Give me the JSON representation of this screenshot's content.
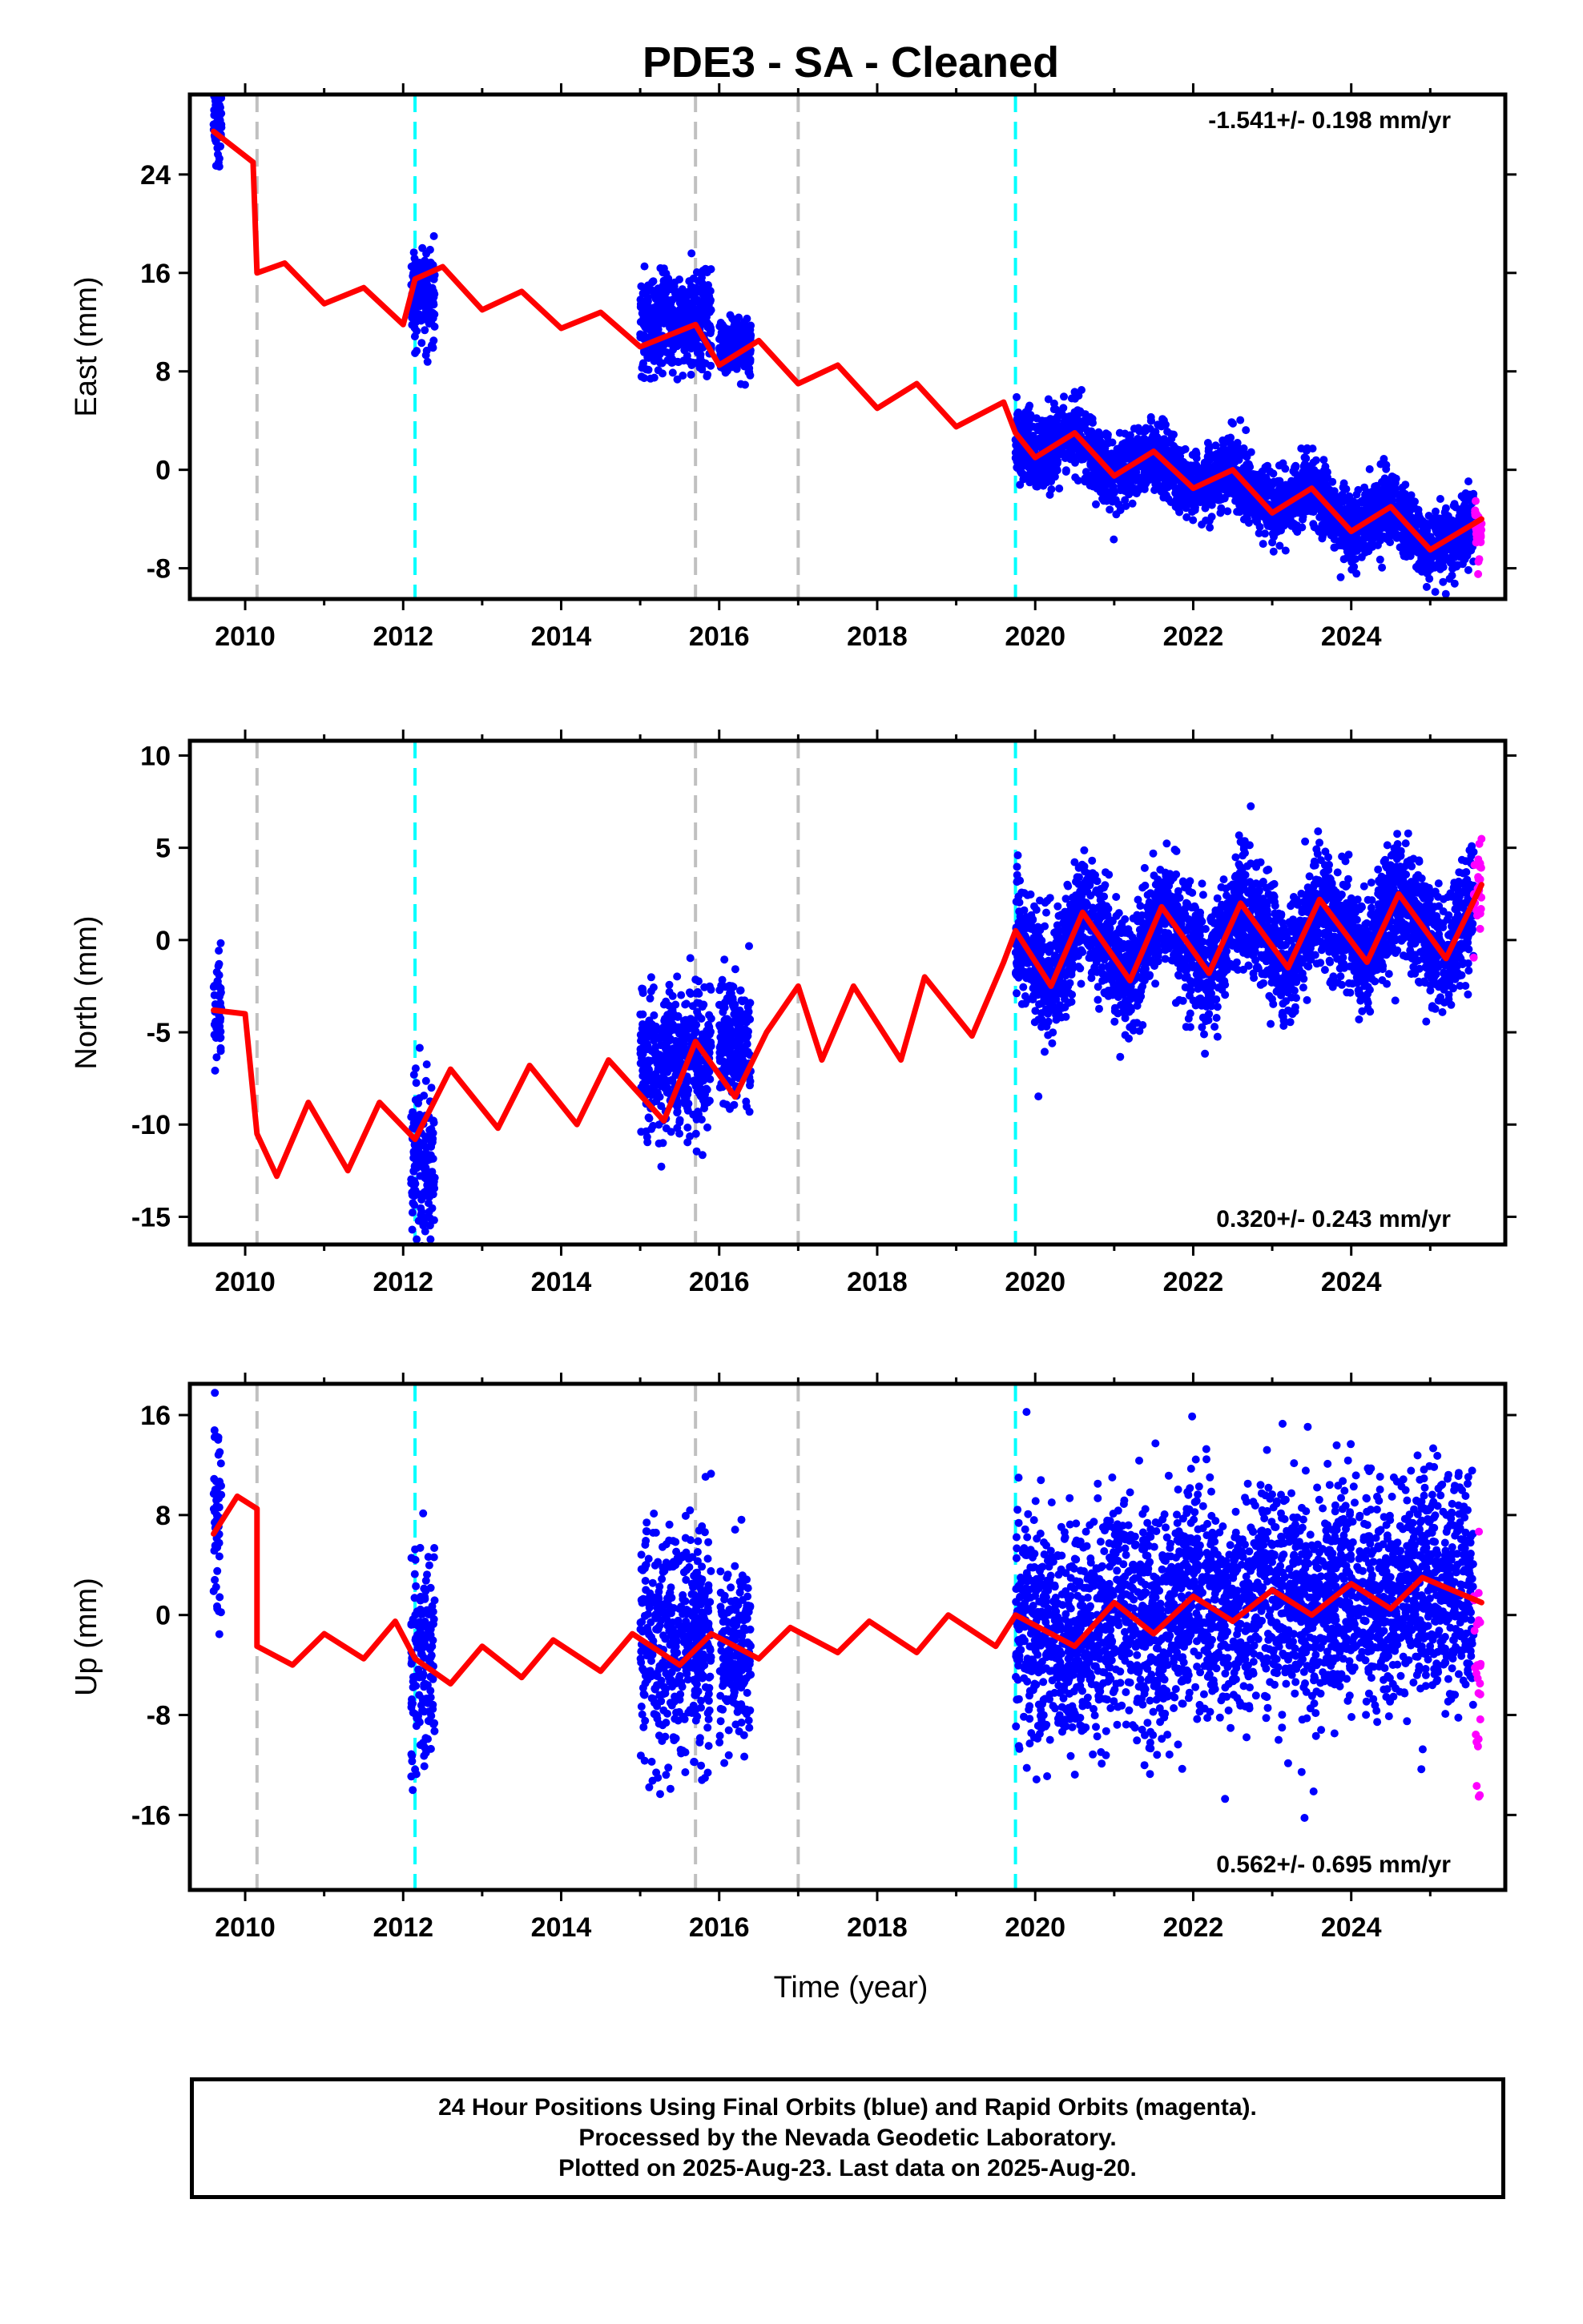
{
  "title": "PDE3  - SA - Cleaned",
  "x_label": "Time (year)",
  "footer": {
    "line1": "24 Hour Positions Using Final Orbits (blue) and Rapid Orbits (magenta).",
    "line2": "Processed by the Nevada Geodetic Laboratory.",
    "line3": "Plotted on 2025-Aug-23. Last data on 2025-Aug-20."
  },
  "colors": {
    "final_orbits": "#0000ff",
    "rapid_orbits": "#ff00ff",
    "model": "#ff0000",
    "offset_equipment": "#00ffff",
    "offset_other": "#c0c0c0"
  },
  "chart_data": [
    {
      "type": "scatter",
      "panel": "east",
      "ylabel": "East (mm)",
      "rate": "-1.541+/- 0.198 mm/yr",
      "rate_position": "top-right",
      "xlim": [
        2009.3,
        2025.95
      ],
      "ylim": [
        -10.5,
        30.5
      ],
      "xticks": [
        2010,
        2012,
        2014,
        2016,
        2018,
        2020,
        2022,
        2024
      ],
      "yticks": [
        -8,
        0,
        8,
        16,
        24
      ],
      "offsets_gray": [
        2010.15,
        2015.7,
        2017.0
      ],
      "offsets_cyan": [
        2012.15,
        2019.75
      ],
      "model": {
        "segments": [
          [
            2009.6,
            2010.15
          ],
          [
            2010.15,
            2019.75
          ],
          [
            2019.75,
            2025.65
          ]
        ],
        "points": [
          [
            2009.6,
            27.5
          ],
          [
            2010.1,
            25.0
          ],
          [
            2010.15,
            16.0
          ],
          [
            2010.5,
            16.8
          ],
          [
            2011.0,
            13.5
          ],
          [
            2011.5,
            14.8
          ],
          [
            2012.0,
            11.8
          ],
          [
            2012.15,
            15.5
          ],
          [
            2012.5,
            16.5
          ],
          [
            2013.0,
            13.0
          ],
          [
            2013.5,
            14.5
          ],
          [
            2014.0,
            11.5
          ],
          [
            2014.5,
            12.8
          ],
          [
            2015.0,
            10.0
          ],
          [
            2015.7,
            11.8
          ],
          [
            2016.0,
            8.5
          ],
          [
            2016.5,
            10.5
          ],
          [
            2017.0,
            7.0
          ],
          [
            2017.5,
            8.5
          ],
          [
            2018.0,
            5.0
          ],
          [
            2018.5,
            7.0
          ],
          [
            2019.0,
            3.5
          ],
          [
            2019.6,
            5.5
          ],
          [
            2019.75,
            3.0
          ],
          [
            2020.0,
            1.0
          ],
          [
            2020.5,
            3.0
          ],
          [
            2021.0,
            -0.5
          ],
          [
            2021.5,
            1.5
          ],
          [
            2022.0,
            -1.5
          ],
          [
            2022.5,
            0.0
          ],
          [
            2023.0,
            -3.5
          ],
          [
            2023.5,
            -1.5
          ],
          [
            2024.0,
            -5.0
          ],
          [
            2024.5,
            -3.0
          ],
          [
            2025.0,
            -6.5
          ],
          [
            2025.65,
            -4.0
          ]
        ]
      },
      "final_orbit_spans": [
        {
          "x": [
            2009.6,
            2009.7
          ],
          "center": 28.0,
          "spread": 1.8
        },
        {
          "x": [
            2012.1,
            2012.4
          ],
          "center": 14.0,
          "spread": 1.8
        },
        {
          "x": [
            2015.0,
            2015.9
          ],
          "center": 12.0,
          "spread": 2.0
        },
        {
          "x": [
            2016.0,
            2016.4
          ],
          "center": 10.0,
          "spread": 1.2
        },
        {
          "x": [
            2019.75,
            2025.55
          ],
          "center": "model",
          "spread": 1.4
        }
      ],
      "rapid_orbit_span": {
        "x": [
          2025.55,
          2025.65
        ],
        "center": -5.5,
        "spread": 1.4
      }
    },
    {
      "type": "scatter",
      "panel": "north",
      "ylabel": "North (mm)",
      "rate": "0.320+/- 0.243 mm/yr",
      "rate_position": "bottom-right",
      "xlim": [
        2009.3,
        2025.95
      ],
      "ylim": [
        -16.5,
        10.8
      ],
      "xticks": [
        2010,
        2012,
        2014,
        2016,
        2018,
        2020,
        2022,
        2024
      ],
      "yticks": [
        -15,
        -10,
        -5,
        0,
        5,
        10
      ],
      "offsets_gray": [
        2010.15,
        2015.7,
        2017.0
      ],
      "offsets_cyan": [
        2012.15,
        2019.75
      ],
      "model": {
        "segments": [
          [
            2009.6,
            2010.15
          ],
          [
            2010.15,
            2017.0
          ],
          [
            2017.0,
            2019.75
          ],
          [
            2019.75,
            2025.65
          ]
        ],
        "points": [
          [
            2009.6,
            -3.8
          ],
          [
            2010.0,
            -4.0
          ],
          [
            2010.15,
            -10.5
          ],
          [
            2010.4,
            -12.8
          ],
          [
            2010.8,
            -8.8
          ],
          [
            2011.3,
            -12.5
          ],
          [
            2011.7,
            -8.8
          ],
          [
            2012.15,
            -10.8
          ],
          [
            2012.6,
            -7.0
          ],
          [
            2013.2,
            -10.2
          ],
          [
            2013.6,
            -6.8
          ],
          [
            2014.2,
            -10.0
          ],
          [
            2014.6,
            -6.5
          ],
          [
            2015.3,
            -9.8
          ],
          [
            2015.7,
            -5.5
          ],
          [
            2016.2,
            -8.5
          ],
          [
            2016.6,
            -5.0
          ],
          [
            2017.0,
            -2.5
          ],
          [
            2017.3,
            -6.5
          ],
          [
            2017.7,
            -2.5
          ],
          [
            2018.3,
            -6.5
          ],
          [
            2018.6,
            -2.0
          ],
          [
            2019.2,
            -5.2
          ],
          [
            2019.6,
            -1.2
          ],
          [
            2019.75,
            0.5
          ],
          [
            2020.2,
            -2.5
          ],
          [
            2020.6,
            1.5
          ],
          [
            2021.2,
            -2.2
          ],
          [
            2021.6,
            1.8
          ],
          [
            2022.2,
            -1.8
          ],
          [
            2022.6,
            2.0
          ],
          [
            2023.2,
            -1.5
          ],
          [
            2023.6,
            2.2
          ],
          [
            2024.2,
            -1.2
          ],
          [
            2024.6,
            2.5
          ],
          [
            2025.2,
            -1.0
          ],
          [
            2025.65,
            3.0
          ]
        ]
      },
      "final_orbit_spans": [
        {
          "x": [
            2009.6,
            2009.7
          ],
          "center": -3.5,
          "spread": 1.5
        },
        {
          "x": [
            2012.1,
            2012.4
          ],
          "center": -12.0,
          "spread": 2.2
        },
        {
          "x": [
            2015.0,
            2015.9
          ],
          "center": -6.5,
          "spread": 2.0
        },
        {
          "x": [
            2016.0,
            2016.4
          ],
          "center": -5.5,
          "spread": 1.6
        },
        {
          "x": [
            2019.75,
            2025.55
          ],
          "center": "model",
          "spread": 1.6
        }
      ],
      "rapid_orbit_span": {
        "x": [
          2025.55,
          2025.65
        ],
        "center": 2.5,
        "spread": 1.5
      }
    },
    {
      "type": "scatter",
      "panel": "up",
      "ylabel": "Up (mm)",
      "rate": "0.562+/- 0.695 mm/yr",
      "rate_position": "bottom-right",
      "xlim": [
        2009.3,
        2025.95
      ],
      "ylim": [
        -22,
        18.5
      ],
      "xticks": [
        2010,
        2012,
        2014,
        2016,
        2018,
        2020,
        2022,
        2024
      ],
      "yticks": [
        -16,
        -8,
        0,
        8,
        16
      ],
      "offsets_gray": [
        2010.15,
        2015.7,
        2017.0
      ],
      "offsets_cyan": [
        2012.15,
        2019.75
      ],
      "model": {
        "segments": [
          [
            2009.6,
            2010.15
          ],
          [
            2010.15,
            2012.15
          ],
          [
            2012.15,
            2019.75
          ],
          [
            2019.75,
            2025.65
          ]
        ],
        "points": [
          [
            2009.6,
            6.5
          ],
          [
            2009.9,
            9.5
          ],
          [
            2010.15,
            8.5
          ],
          [
            2010.15,
            -2.5
          ],
          [
            2010.6,
            -4.0
          ],
          [
            2011.0,
            -1.5
          ],
          [
            2011.5,
            -3.5
          ],
          [
            2011.9,
            -0.5
          ],
          [
            2012.15,
            -3.5
          ],
          [
            2012.6,
            -5.5
          ],
          [
            2013.0,
            -2.5
          ],
          [
            2013.5,
            -5.0
          ],
          [
            2013.9,
            -2.0
          ],
          [
            2014.5,
            -4.5
          ],
          [
            2014.9,
            -1.5
          ],
          [
            2015.5,
            -4.0
          ],
          [
            2015.9,
            -1.5
          ],
          [
            2016.5,
            -3.5
          ],
          [
            2016.9,
            -1.0
          ],
          [
            2017.5,
            -3.0
          ],
          [
            2017.9,
            -0.5
          ],
          [
            2018.5,
            -3.0
          ],
          [
            2018.9,
            0.0
          ],
          [
            2019.5,
            -2.5
          ],
          [
            2019.75,
            0.0
          ],
          [
            2020.5,
            -2.5
          ],
          [
            2021.0,
            1.0
          ],
          [
            2021.5,
            -1.5
          ],
          [
            2022.0,
            1.5
          ],
          [
            2022.5,
            -0.5
          ],
          [
            2023.0,
            2.0
          ],
          [
            2023.5,
            0.0
          ],
          [
            2024.0,
            2.5
          ],
          [
            2024.5,
            0.5
          ],
          [
            2024.9,
            3.0
          ],
          [
            2025.65,
            1.0
          ]
        ]
      },
      "final_orbit_spans": [
        {
          "x": [
            2009.6,
            2009.7
          ],
          "center": 6.0,
          "spread": 4.5
        },
        {
          "x": [
            2012.1,
            2012.4
          ],
          "center": -3.0,
          "spread": 4.5
        },
        {
          "x": [
            2015.0,
            2015.9
          ],
          "center": -2.0,
          "spread": 4.8
        },
        {
          "x": [
            2016.0,
            2016.4
          ],
          "center": -3.0,
          "spread": 3.5
        },
        {
          "x": [
            2019.75,
            2025.55
          ],
          "center": "model",
          "spread": 4.5
        }
      ],
      "rapid_orbit_span": {
        "x": [
          2025.55,
          2025.65
        ],
        "center": -6.0,
        "spread": 6.0
      }
    }
  ]
}
